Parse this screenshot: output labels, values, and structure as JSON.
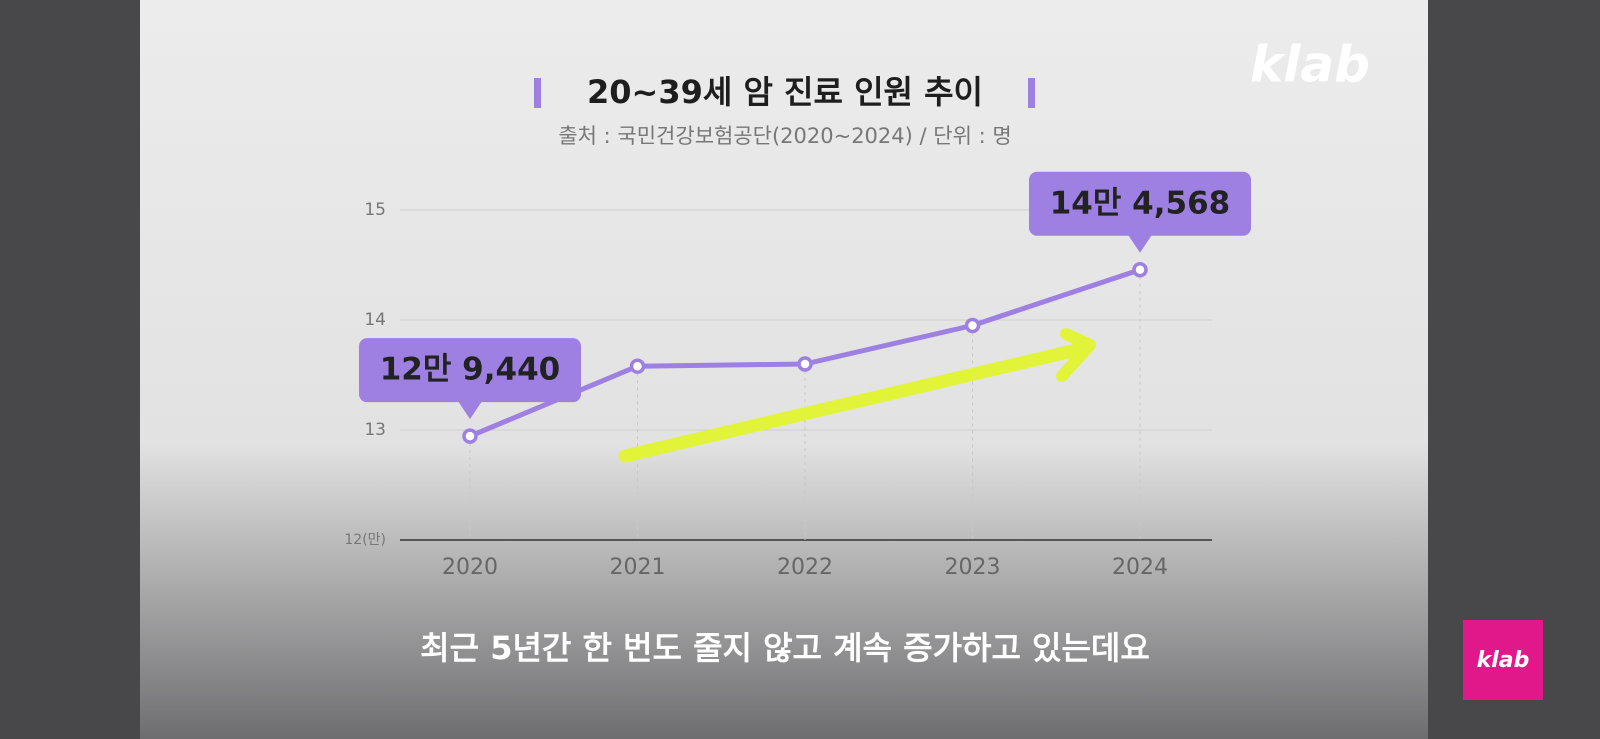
{
  "logo": "klab",
  "caption": "최근 5년간 한 번도 줄지 않고 계속 증가하고 있는데요",
  "chart_data": {
    "type": "line",
    "title": "20~39세 암 진료 인원 추이",
    "subtitle": "출처 : 국민건강보험공단(2020~2024) / 단위 : 명",
    "categories": [
      "2020",
      "2021",
      "2022",
      "2023",
      "2024"
    ],
    "values": [
      12.944,
      13.58,
      13.6,
      13.95,
      14.4568
    ],
    "value_labels": [
      "12만 9,440",
      null,
      null,
      null,
      "14만 4,568"
    ],
    "color": "#9d80e2",
    "ylim": [
      12,
      15
    ],
    "yticks": [
      {
        "value": 12,
        "label": "12(만)"
      },
      13,
      14,
      15
    ],
    "grid": true
  }
}
